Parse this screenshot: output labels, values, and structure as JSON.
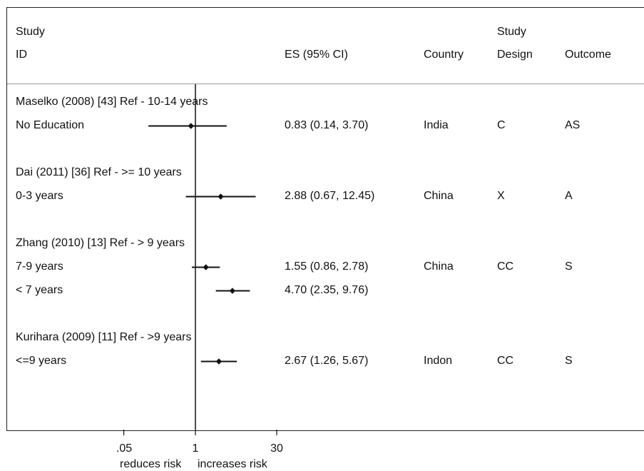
{
  "header": {
    "study_line1": "Study",
    "study_line2": "ID",
    "es": "ES (95% CI)",
    "country": "Country",
    "design_line1": "Study",
    "design_line2": "Design",
    "outcome": "Outcome"
  },
  "chart_data": {
    "type": "forest",
    "x_scale": "log",
    "ref_line": 1,
    "xlim": [
      0.05,
      30
    ],
    "ticks": [
      ".05",
      "1",
      "30"
    ],
    "axis_notes": [
      "reduces risk",
      "increases risk"
    ],
    "rows": [
      {
        "kind": "group",
        "label": "Maselko (2008) [43] Ref - 10-14 years"
      },
      {
        "kind": "est",
        "label": "No Education",
        "es": 0.83,
        "lo": 0.14,
        "hi": 3.7,
        "es_text": "0.83 (0.14, 3.70)",
        "country": "India",
        "design": "C",
        "outcome": "AS"
      },
      {
        "kind": "group",
        "label": "Dai (2011) [36] Ref - >= 10 years"
      },
      {
        "kind": "est",
        "label": "0-3 years",
        "es": 2.88,
        "lo": 0.67,
        "hi": 12.45,
        "es_text": "2.88 (0.67, 12.45)",
        "country": "China",
        "design": "X",
        "outcome": "A"
      },
      {
        "kind": "group",
        "label": "Zhang (2010) [13] Ref - > 9 years"
      },
      {
        "kind": "est",
        "label": "7-9 years",
        "es": 1.55,
        "lo": 0.86,
        "hi": 2.78,
        "es_text": "1.55 (0.86, 2.78)",
        "country": "China",
        "design": "CC",
        "outcome": "S"
      },
      {
        "kind": "est",
        "label": "< 7 years",
        "es": 4.7,
        "lo": 2.35,
        "hi": 9.76,
        "es_text": "4.70 (2.35, 9.76)",
        "country": "",
        "design": "",
        "outcome": ""
      },
      {
        "kind": "group",
        "label": "Kurihara (2009) [11] Ref - >9 years"
      },
      {
        "kind": "est",
        "label": "<=9 years",
        "es": 2.67,
        "lo": 1.26,
        "hi": 5.67,
        "es_text": "2.67 (1.26, 5.67)",
        "country": "Indon",
        "design": "CC",
        "outcome": "S"
      }
    ]
  }
}
